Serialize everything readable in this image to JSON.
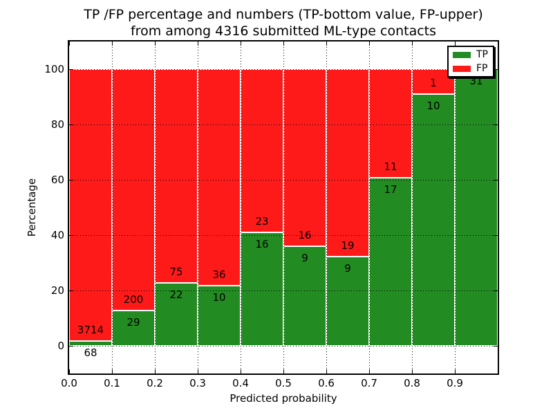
{
  "figure": {
    "title_line1": "TP /FP percentage and numbers (TP-bottom value, FP-upper)",
    "title_line2": "from among 4316 submitted ML-type contacts"
  },
  "axes": {
    "xlabel": "Predicted probability",
    "ylabel": "Percentage",
    "xtick_labels": [
      "0.0",
      "0.1",
      "0.2",
      "0.3",
      "0.4",
      "0.5",
      "0.6",
      "0.7",
      "0.8",
      "0.9"
    ],
    "ytick_labels": [
      "0",
      "20",
      "40",
      "60",
      "80",
      "100"
    ],
    "ytick_values": [
      0,
      20,
      40,
      60,
      80,
      100
    ]
  },
  "legend": {
    "items": [
      {
        "label": "TP",
        "color": "#228b22"
      },
      {
        "label": "FP",
        "color": "#ff1a1a"
      }
    ]
  },
  "chart_data": {
    "type": "bar",
    "variant": "stacked-percentage",
    "title": "TP /FP percentage and numbers (TP-bottom value, FP-upper) from among 4316 submitted ML-type contacts",
    "xlabel": "Predicted probability",
    "ylabel": "Percentage",
    "total_contacts": 4316,
    "bin_width": 0.1,
    "categories": [
      "0.0-0.1",
      "0.1-0.2",
      "0.2-0.3",
      "0.3-0.4",
      "0.4-0.5",
      "0.5-0.6",
      "0.6-0.7",
      "0.7-0.8",
      "0.8-0.9",
      "0.9-1.0"
    ],
    "bin_starts": [
      0.0,
      0.1,
      0.2,
      0.3,
      0.4,
      0.5,
      0.6,
      0.7,
      0.8,
      0.9
    ],
    "series": [
      {
        "name": "TP",
        "color": "#228b22",
        "counts": [
          68,
          29,
          22,
          10,
          16,
          9,
          9,
          17,
          10,
          31
        ]
      },
      {
        "name": "FP",
        "color": "#ff1a1a",
        "counts": [
          3714,
          200,
          75,
          36,
          23,
          16,
          19,
          11,
          1,
          0
        ]
      }
    ],
    "tp_percent": [
      1.8,
      12.7,
      22.7,
      21.7,
      41.0,
      36.0,
      32.1,
      60.7,
      90.9,
      100.0
    ],
    "xlim": [
      0.0,
      1.0
    ],
    "ylim": [
      -10,
      110
    ],
    "grid": "dotted",
    "legend_position": "upper right",
    "bar_edge_color": "#ffffff"
  }
}
